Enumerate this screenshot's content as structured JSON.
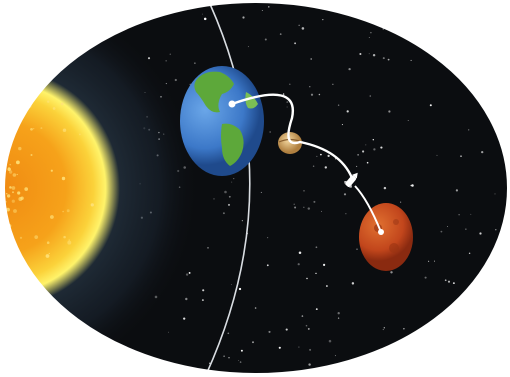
{
  "scene": {
    "icons": {
      "frame": "ellipse-frame",
      "background": "starfield",
      "sun": "sun-icon",
      "orbit": "orbit-line-icon",
      "earth": "earth-icon",
      "moon": "moon-icon",
      "spacecraft": "spacecraft-icon",
      "mars": "mars-icon",
      "trajectory": "trajectory-path-icon"
    },
    "colors": {
      "space": "#0b0d10",
      "sun_core": "#f6a21a",
      "sun_glow": "#fff36a",
      "earth_ocean": "#3c78c8",
      "earth_land": "#5da83a",
      "mars": "#c2461c",
      "orbit": "#d9dde2",
      "trajectory": "#ffffff"
    }
  }
}
